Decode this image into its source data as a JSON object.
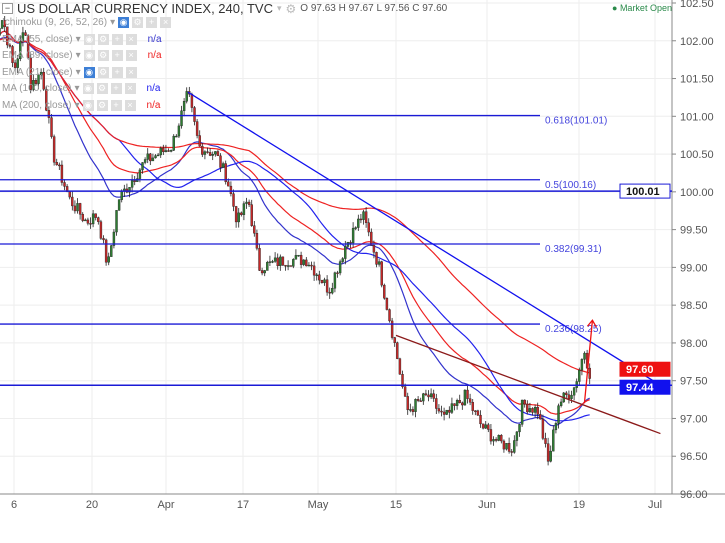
{
  "header": {
    "title": "US DOLLAR CURRENCY INDEX, 240, TVC",
    "ohlc": "O 97.63  H 97.67  L 97.56  C 97.60"
  },
  "market_status": "Market Open",
  "legend": [
    {
      "label": "Ichimoku (9, 26, 52, 26)",
      "value": "",
      "visible_toggle": true
    },
    {
      "label": "EMA (55, close)",
      "value": "n/a",
      "color": "#3333cc"
    },
    {
      "label": "EMA (89, close)",
      "value": "n/a",
      "color": "#ee2222"
    },
    {
      "label": "EMA (21, close)",
      "value": "",
      "visible_toggle": true
    },
    {
      "label": "MA (100, close)",
      "value": "n/a",
      "color": "#2222ee"
    },
    {
      "label": "MA (200, close)",
      "value": "n/a",
      "color": "#ee2222"
    }
  ],
  "chart_data": {
    "type": "candlestick",
    "title": "US DOLLAR CURRENCY INDEX, 240, TVC",
    "ylim": [
      96.0,
      102.5
    ],
    "y_ticks": [
      "102.50",
      "102.00",
      "101.50",
      "101.00",
      "100.50",
      "100.00",
      "99.50",
      "99.00",
      "98.50",
      "98.00",
      "97.50",
      "97.00",
      "96.50",
      "96.00"
    ],
    "x_ticks": [
      {
        "label": "6",
        "date": "2017-03-06"
      },
      {
        "label": "20",
        "date": "2017-03-20"
      },
      {
        "label": "Apr",
        "date": "2017-04-03"
      },
      {
        "label": "17",
        "date": "2017-04-17"
      },
      {
        "label": "May",
        "date": "2017-05-01"
      },
      {
        "label": "15",
        "date": "2017-05-15"
      },
      {
        "label": "Jun",
        "date": "2017-06-01"
      },
      {
        "label": "19",
        "date": "2017-06-19"
      },
      {
        "label": "Jul",
        "date": "2017-07-03"
      }
    ],
    "price_path": [
      [
        "2017-03-02",
        102.0
      ],
      [
        "2017-03-04",
        102.3
      ],
      [
        "2017-03-06",
        101.6
      ],
      [
        "2017-03-08",
        102.2
      ],
      [
        "2017-03-09",
        101.4
      ],
      [
        "2017-03-11",
        101.6
      ],
      [
        "2017-03-13",
        100.5
      ],
      [
        "2017-03-16",
        99.9
      ],
      [
        "2017-03-19",
        99.6
      ],
      [
        "2017-03-21",
        99.7
      ],
      [
        "2017-03-23",
        99.0
      ],
      [
        "2017-03-25",
        99.9
      ],
      [
        "2017-03-30",
        100.4
      ],
      [
        "2017-04-04",
        100.6
      ],
      [
        "2017-04-07",
        101.3
      ],
      [
        "2017-04-09",
        100.6
      ],
      [
        "2017-04-12",
        100.5
      ],
      [
        "2017-04-14",
        100.2
      ],
      [
        "2017-04-16",
        99.6
      ],
      [
        "2017-04-18",
        99.9
      ],
      [
        "2017-04-20",
        99.0
      ],
      [
        "2017-04-25",
        99.1
      ],
      [
        "2017-04-29",
        99.1
      ],
      [
        "2017-05-03",
        98.7
      ],
      [
        "2017-05-06",
        99.3
      ],
      [
        "2017-05-09",
        99.7
      ],
      [
        "2017-05-12",
        99.0
      ],
      [
        "2017-05-15",
        97.9
      ],
      [
        "2017-05-17",
        97.1
      ],
      [
        "2017-05-21",
        97.3
      ],
      [
        "2017-05-24",
        97.0
      ],
      [
        "2017-05-28",
        97.3
      ],
      [
        "2017-05-31",
        96.9
      ],
      [
        "2017-06-03",
        96.7
      ],
      [
        "2017-06-06",
        96.6
      ],
      [
        "2017-06-08",
        97.2
      ],
      [
        "2017-06-11",
        97.1
      ],
      [
        "2017-06-13",
        96.4
      ],
      [
        "2017-06-15",
        97.2
      ],
      [
        "2017-06-18",
        97.4
      ],
      [
        "2017-06-20",
        97.9
      ],
      [
        "2017-06-21",
        97.6
      ]
    ],
    "last_price": "97.60",
    "last_price_color": "#ee1111",
    "line_price": "97.44",
    "line_price_color": "#1111ee",
    "levels": [
      {
        "price": 101.01,
        "label": "0.618(101.01)"
      },
      {
        "price": 100.16,
        "label": "0.5(100.16)"
      },
      {
        "price": 99.31,
        "label": "0.382(99.31)"
      },
      {
        "price": 98.25,
        "label": "0.236(98.25)"
      }
    ],
    "horizontal_lines": [
      {
        "price": 100.01,
        "label": "100.01"
      },
      {
        "price": 97.44,
        "label": "97.44"
      }
    ],
    "trendlines": [
      {
        "from": [
          "2017-04-07",
          101.32
        ],
        "to": [
          "2017-07-04",
          97.44
        ],
        "color": "#1111ee"
      },
      {
        "from": [
          "2017-05-15",
          98.1
        ],
        "to": [
          "2017-07-04",
          96.8
        ],
        "color": "#8b1a1a"
      }
    ],
    "grid": true
  }
}
